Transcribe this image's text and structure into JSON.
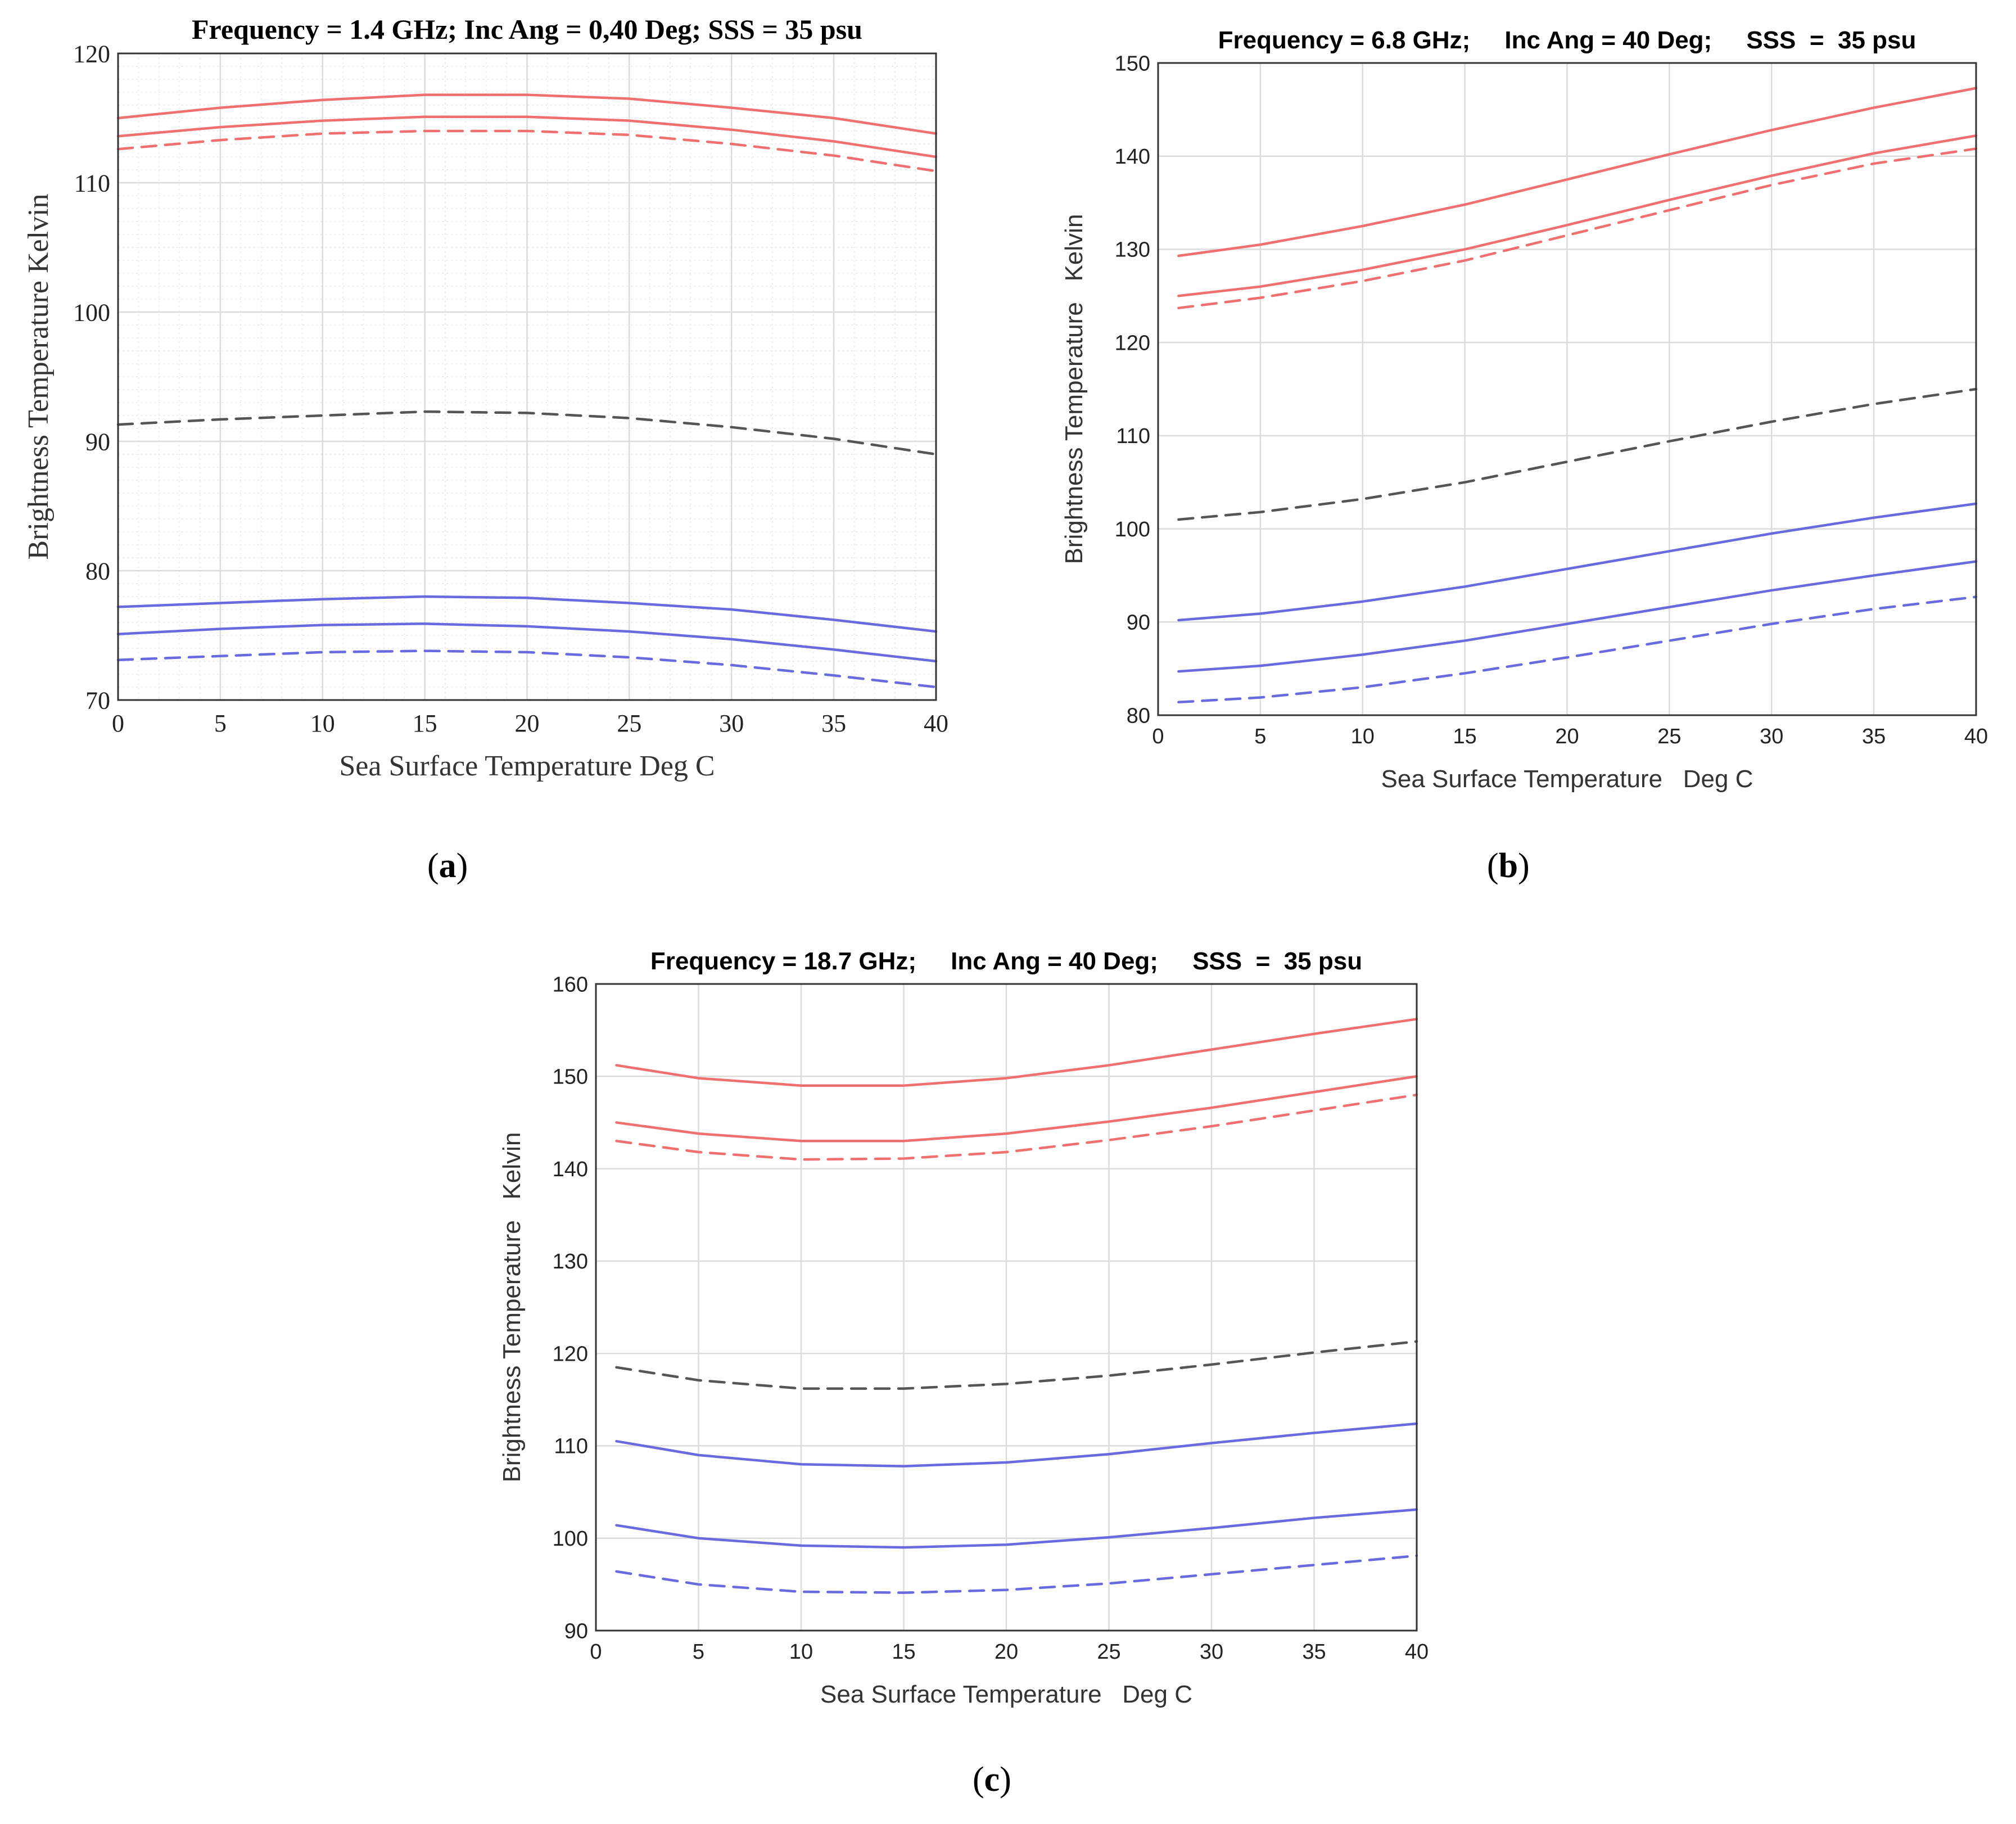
{
  "colors": {
    "h_pol": "#f07070",
    "v_pol": "#6a6ae0",
    "mid": "#555555",
    "grid": "#dcdcdc",
    "minor_grid": "#eeeeee"
  },
  "panels": [
    {
      "label_open": "(",
      "label_letter": "a",
      "label_close": ")"
    },
    {
      "label_open": "(",
      "label_letter": "b",
      "label_close": ")"
    },
    {
      "label_open": "(",
      "label_letter": "c",
      "label_close": ")"
    }
  ],
  "chart_data": [
    {
      "type": "line",
      "title": "Frequency = 1.4 GHz; Inc Ang = 0,40 Deg; SSS = 35 psu",
      "xlabel": "Sea Surface Temperature Deg C",
      "ylabel": "Brightness Temperature Kelvin",
      "xlim": [
        0,
        40
      ],
      "ylim": [
        70,
        120
      ],
      "xticks": [
        "0",
        "5",
        "10",
        "15",
        "20",
        "25",
        "30",
        "35",
        "40"
      ],
      "yticks": [
        "70",
        "80",
        "90",
        "100",
        "110",
        "120"
      ],
      "minor_grid": true,
      "x": [
        0,
        5,
        10,
        15,
        20,
        25,
        30,
        35,
        40
      ],
      "series": [
        {
          "name": "red solid upper",
          "color": "h_pol",
          "dash": "solid",
          "values": [
            115.0,
            115.8,
            116.4,
            116.8,
            116.8,
            116.5,
            115.8,
            115.0,
            113.8
          ]
        },
        {
          "name": "red solid lower",
          "color": "h_pol",
          "dash": "solid",
          "values": [
            113.6,
            114.3,
            114.8,
            115.1,
            115.1,
            114.8,
            114.1,
            113.2,
            112.0
          ]
        },
        {
          "name": "red dashed",
          "color": "h_pol",
          "dash": "dashed",
          "values": [
            112.6,
            113.3,
            113.8,
            114.0,
            114.0,
            113.7,
            113.0,
            112.1,
            110.9
          ]
        },
        {
          "name": "black dashed",
          "color": "mid",
          "dash": "dashed",
          "values": [
            91.3,
            91.7,
            92.0,
            92.3,
            92.2,
            91.8,
            91.1,
            90.2,
            89.0
          ]
        },
        {
          "name": "blue solid upper",
          "color": "v_pol",
          "dash": "solid",
          "values": [
            77.2,
            77.5,
            77.8,
            78.0,
            77.9,
            77.5,
            77.0,
            76.2,
            75.3
          ]
        },
        {
          "name": "blue solid lower",
          "color": "v_pol",
          "dash": "solid",
          "values": [
            75.1,
            75.5,
            75.8,
            75.9,
            75.7,
            75.3,
            74.7,
            73.9,
            73.0
          ]
        },
        {
          "name": "blue dashed",
          "color": "v_pol",
          "dash": "dashed",
          "values": [
            73.1,
            73.4,
            73.7,
            73.8,
            73.7,
            73.3,
            72.7,
            71.9,
            71.0
          ]
        }
      ]
    },
    {
      "type": "line",
      "title": "Frequency = 6.8 GHz;     Inc Ang = 40 Deg;     SSS  =  35 psu",
      "xlabel": "Sea Surface Temperature   Deg C",
      "ylabel": "Brightness Temperature   Kelvin",
      "xlim": [
        0,
        40
      ],
      "ylim": [
        80,
        150
      ],
      "xticks": [
        "0",
        "5",
        "10",
        "15",
        "20",
        "25",
        "30",
        "35",
        "40"
      ],
      "yticks": [
        "80",
        "90",
        "100",
        "110",
        "120",
        "130",
        "140",
        "150"
      ],
      "minor_grid": false,
      "x": [
        1,
        5,
        10,
        15,
        20,
        25,
        30,
        35,
        40
      ],
      "series": [
        {
          "name": "red solid upper",
          "color": "h_pol",
          "dash": "solid",
          "values": [
            129.3,
            130.5,
            132.5,
            134.8,
            137.5,
            140.2,
            142.8,
            145.2,
            147.3
          ]
        },
        {
          "name": "red solid lower",
          "color": "h_pol",
          "dash": "solid",
          "values": [
            125.0,
            126.0,
            127.8,
            130.0,
            132.6,
            135.3,
            137.9,
            140.3,
            142.2
          ]
        },
        {
          "name": "red dashed",
          "color": "h_pol",
          "dash": "dashed",
          "values": [
            123.7,
            124.8,
            126.6,
            128.8,
            131.5,
            134.2,
            136.9,
            139.2,
            140.8
          ]
        },
        {
          "name": "black dashed",
          "color": "mid",
          "dash": "dashed",
          "values": [
            101.0,
            101.8,
            103.2,
            105.0,
            107.2,
            109.4,
            111.5,
            113.4,
            115.0
          ]
        },
        {
          "name": "blue solid upper",
          "color": "v_pol",
          "dash": "solid",
          "values": [
            90.2,
            90.9,
            92.2,
            93.8,
            95.7,
            97.6,
            99.5,
            101.2,
            102.7
          ]
        },
        {
          "name": "blue solid lower",
          "color": "v_pol",
          "dash": "solid",
          "values": [
            84.7,
            85.3,
            86.5,
            88.0,
            89.8,
            91.6,
            93.4,
            95.0,
            96.5
          ]
        },
        {
          "name": "blue dashed",
          "color": "v_pol",
          "dash": "dashed",
          "values": [
            81.4,
            81.9,
            83.0,
            84.5,
            86.2,
            88.0,
            89.8,
            91.4,
            92.7
          ]
        }
      ]
    },
    {
      "type": "line",
      "title": "Frequency = 18.7 GHz;     Inc Ang = 40 Deg;     SSS  =  35 psu",
      "xlabel": "Sea Surface Temperature   Deg C",
      "ylabel": "Brightness Temperature   Kelvin",
      "xlim": [
        0,
        40
      ],
      "ylim": [
        90,
        160
      ],
      "xticks": [
        "0",
        "5",
        "10",
        "15",
        "20",
        "25",
        "30",
        "35",
        "40"
      ],
      "yticks": [
        "90",
        "100",
        "110",
        "120",
        "130",
        "140",
        "150",
        "160"
      ],
      "minor_grid": false,
      "x": [
        1,
        5,
        10,
        15,
        20,
        25,
        30,
        35,
        40
      ],
      "series": [
        {
          "name": "red solid upper",
          "color": "h_pol",
          "dash": "solid",
          "values": [
            151.2,
            149.8,
            149.0,
            149.0,
            149.8,
            151.2,
            152.9,
            154.6,
            156.2
          ]
        },
        {
          "name": "red solid lower",
          "color": "h_pol",
          "dash": "solid",
          "values": [
            145.0,
            143.8,
            143.0,
            143.0,
            143.8,
            145.1,
            146.6,
            148.3,
            150.0
          ]
        },
        {
          "name": "red dashed",
          "color": "h_pol",
          "dash": "dashed",
          "values": [
            143.0,
            141.8,
            141.0,
            141.1,
            141.8,
            143.1,
            144.6,
            146.3,
            148.0
          ]
        },
        {
          "name": "black dashed",
          "color": "mid",
          "dash": "dashed",
          "values": [
            118.5,
            117.1,
            116.2,
            116.2,
            116.7,
            117.6,
            118.8,
            120.1,
            121.3
          ]
        },
        {
          "name": "blue solid upper",
          "color": "v_pol",
          "dash": "solid",
          "values": [
            110.5,
            109.0,
            108.0,
            107.8,
            108.2,
            109.1,
            110.3,
            111.4,
            112.4
          ]
        },
        {
          "name": "blue solid lower",
          "color": "v_pol",
          "dash": "solid",
          "values": [
            101.4,
            100.0,
            99.2,
            99.0,
            99.3,
            100.1,
            101.1,
            102.2,
            103.1
          ]
        },
        {
          "name": "blue dashed",
          "color": "v_pol",
          "dash": "dashed",
          "values": [
            96.4,
            95.0,
            94.2,
            94.1,
            94.4,
            95.1,
            96.1,
            97.1,
            98.1
          ]
        }
      ]
    }
  ]
}
